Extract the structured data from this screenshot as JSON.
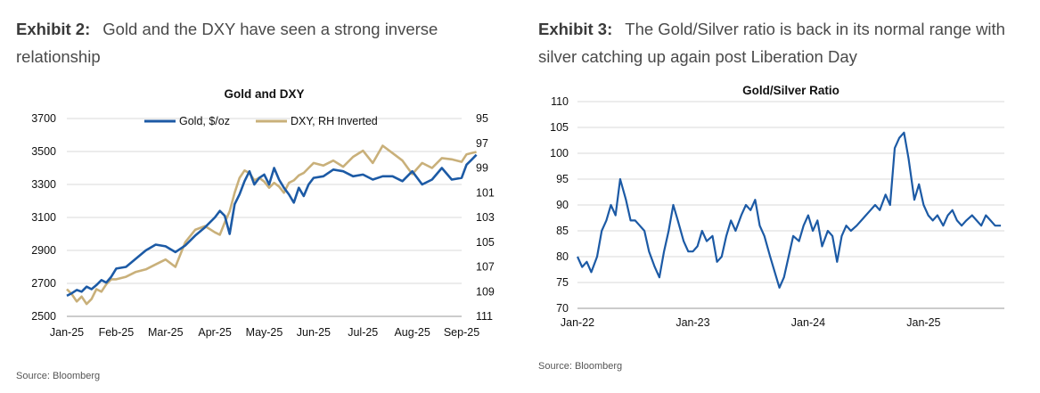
{
  "exhibit2": {
    "label": "Exhibit 2:",
    "text": "Gold and the DXY have seen a strong inverse relationship",
    "source": "Source: Bloomberg"
  },
  "exhibit3": {
    "label": "Exhibit 3:",
    "text": "The Gold/Silver ratio is back in its normal range with silver catching up again post Liberation Day",
    "source": "Source: Bloomberg"
  },
  "colors": {
    "gold": "#1c5aa5",
    "dxy": "#c9b07a",
    "ratio": "#1c5aa5",
    "grid": "#d9d9d9",
    "axis": "#999999"
  },
  "chart_data": [
    {
      "type": "line",
      "title": "Gold and DXY",
      "legend_placement": "top-center",
      "grid": true,
      "x_labels": [
        "Jan-25",
        "Feb-25",
        "Mar-25",
        "Apr-25",
        "May-25",
        "Jun-25",
        "Jul-25",
        "Aug-25",
        "Sep-25"
      ],
      "y_left": {
        "ticks": [
          2500,
          2700,
          2900,
          3100,
          3300,
          3500,
          3700
        ],
        "lim": [
          2500,
          3700
        ]
      },
      "y_right": {
        "ticks": [
          95,
          97,
          99,
          101,
          103,
          105,
          107,
          109,
          111
        ],
        "lim": [
          95,
          111
        ],
        "inverted": true
      },
      "series": [
        {
          "name": "Gold, $/oz",
          "axis": "left",
          "x": [
            0,
            0.1,
            0.2,
            0.3,
            0.4,
            0.5,
            0.6,
            0.7,
            0.8,
            0.9,
            1.0,
            1.2,
            1.4,
            1.6,
            1.8,
            2.0,
            2.2,
            2.4,
            2.6,
            2.8,
            3.0,
            3.1,
            3.2,
            3.3,
            3.4,
            3.5,
            3.6,
            3.7,
            3.8,
            3.9,
            4.0,
            4.1,
            4.2,
            4.3,
            4.4,
            4.5,
            4.6,
            4.7,
            4.8,
            4.9,
            5.0,
            5.2,
            5.4,
            5.6,
            5.8,
            6.0,
            6.2,
            6.4,
            6.6,
            6.8,
            7.0,
            7.2,
            7.4,
            7.6,
            7.8,
            8.0,
            8.1,
            8.2,
            8.3
          ],
          "values": [
            2625,
            2640,
            2660,
            2650,
            2680,
            2665,
            2690,
            2720,
            2705,
            2740,
            2790,
            2800,
            2850,
            2900,
            2935,
            2925,
            2890,
            2930,
            2990,
            3040,
            3100,
            3140,
            3110,
            3000,
            3180,
            3240,
            3320,
            3380,
            3300,
            3340,
            3360,
            3300,
            3400,
            3330,
            3280,
            3240,
            3190,
            3280,
            3230,
            3300,
            3340,
            3350,
            3390,
            3380,
            3350,
            3360,
            3330,
            3350,
            3350,
            3320,
            3380,
            3300,
            3330,
            3400,
            3330,
            3340,
            3420,
            3450,
            3480
          ]
        },
        {
          "name": "DXY, RH Inverted",
          "axis": "right",
          "x": [
            0,
            0.1,
            0.2,
            0.3,
            0.4,
            0.5,
            0.6,
            0.7,
            0.8,
            0.9,
            1.0,
            1.2,
            1.4,
            1.6,
            1.8,
            2.0,
            2.2,
            2.4,
            2.6,
            2.8,
            3.0,
            3.1,
            3.2,
            3.3,
            3.4,
            3.5,
            3.6,
            3.7,
            3.8,
            3.9,
            4.0,
            4.1,
            4.2,
            4.3,
            4.4,
            4.5,
            4.6,
            4.7,
            4.8,
            4.9,
            5.0,
            5.2,
            5.4,
            5.6,
            5.8,
            6.0,
            6.2,
            6.4,
            6.6,
            6.8,
            7.0,
            7.2,
            7.4,
            7.6,
            7.8,
            8.0,
            8.1,
            8.2,
            8.3
          ],
          "values": [
            108.8,
            109.2,
            109.8,
            109.4,
            110.0,
            109.6,
            108.8,
            109.0,
            108.4,
            108.0,
            108.0,
            107.8,
            107.4,
            107.2,
            106.8,
            106.4,
            107.0,
            105.0,
            104.0,
            103.7,
            104.2,
            104.4,
            103.4,
            102.5,
            101.0,
            99.8,
            99.2,
            99.4,
            100.0,
            99.8,
            100.1,
            100.6,
            100.2,
            100.5,
            101.0,
            100.2,
            100.0,
            99.6,
            99.4,
            99.0,
            98.6,
            98.8,
            98.4,
            98.9,
            98.1,
            97.6,
            98.6,
            97.2,
            97.8,
            98.4,
            99.5,
            98.6,
            99.0,
            98.2,
            98.3,
            98.5,
            97.9,
            97.8,
            97.7
          ]
        }
      ]
    },
    {
      "type": "line",
      "title": "Gold/Silver Ratio",
      "grid": true,
      "x_labels": [
        "Jan-22",
        "Jan-23",
        "Jan-24",
        "Jan-25"
      ],
      "y": {
        "ticks": [
          70,
          75,
          80,
          85,
          90,
          95,
          100,
          105,
          110
        ],
        "lim": [
          70,
          110
        ]
      },
      "series": [
        {
          "name": "",
          "x": [
            0,
            0.04,
            0.08,
            0.12,
            0.17,
            0.21,
            0.25,
            0.29,
            0.33,
            0.37,
            0.42,
            0.46,
            0.5,
            0.54,
            0.58,
            0.62,
            0.67,
            0.71,
            0.75,
            0.79,
            0.83,
            0.87,
            0.92,
            0.96,
            1.0,
            1.04,
            1.08,
            1.12,
            1.17,
            1.21,
            1.25,
            1.29,
            1.33,
            1.37,
            1.42,
            1.46,
            1.5,
            1.54,
            1.58,
            1.62,
            1.67,
            1.71,
            1.75,
            1.79,
            1.83,
            1.87,
            1.92,
            1.96,
            2.0,
            2.04,
            2.08,
            2.12,
            2.17,
            2.21,
            2.25,
            2.29,
            2.33,
            2.37,
            2.42,
            2.46,
            2.5,
            2.54,
            2.58,
            2.62,
            2.67,
            2.71,
            2.75,
            2.79,
            2.83,
            2.87,
            2.92,
            2.96,
            3.0,
            3.04,
            3.08,
            3.12,
            3.17,
            3.21,
            3.25,
            3.29,
            3.33,
            3.37,
            3.42,
            3.46,
            3.5,
            3.54,
            3.58,
            3.62,
            3.67
          ],
          "values": [
            80,
            78,
            79,
            77,
            80,
            85,
            87,
            90,
            88,
            95,
            91,
            87,
            87,
            86,
            85,
            81,
            78,
            76,
            81,
            85,
            90,
            87,
            83,
            81,
            81,
            82,
            85,
            83,
            84,
            79,
            80,
            84,
            87,
            85,
            88,
            90,
            89,
            91,
            86,
            84,
            80,
            77,
            74,
            76,
            80,
            84,
            83,
            86,
            88,
            85,
            87,
            82,
            85,
            84,
            79,
            84,
            86,
            85,
            86,
            87,
            88,
            89,
            90,
            89,
            92,
            90,
            101,
            103,
            104,
            99,
            91,
            94,
            90,
            88,
            87,
            88,
            86,
            88,
            89,
            87,
            86,
            87,
            88,
            87,
            86,
            88,
            87,
            86,
            86
          ]
        }
      ]
    }
  ]
}
